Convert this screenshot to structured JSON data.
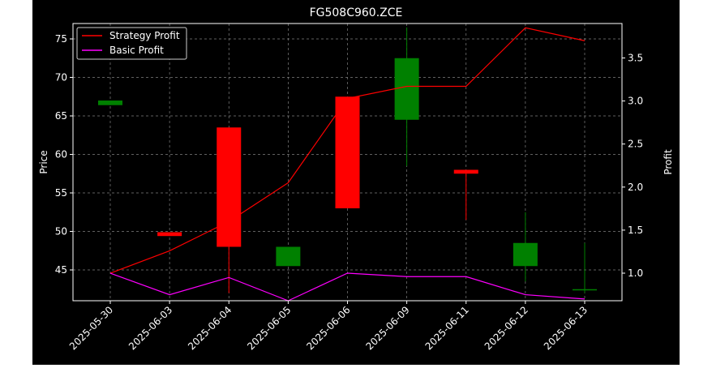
{
  "chart_data": {
    "type": "candlestick",
    "title": "FG508C960.ZCE",
    "ylabel_left": "Price",
    "ylabel_right": "Profit",
    "xlabel": "",
    "ylim_left": [
      41,
      77
    ],
    "ylim_right": [
      0.68,
      3.9
    ],
    "left_ticks": [
      45,
      50,
      55,
      60,
      65,
      70,
      75
    ],
    "right_ticks": [
      "1.0",
      "1.5",
      "2.0",
      "2.5",
      "3.0",
      "3.5"
    ],
    "grid": true,
    "legend_position": "top-left",
    "categories": [
      "2025-05-30",
      "2025-06-03",
      "2025-06-04",
      "2025-06-05",
      "2025-06-06",
      "2025-06-09",
      "2025-06-11",
      "2025-06-12",
      "2025-06-13"
    ],
    "candles": [
      {
        "open": 66.4,
        "close": 67.0,
        "high": 67.0,
        "low": 66.4
      },
      {
        "open": 49.9,
        "close": 49.4,
        "high": 49.9,
        "low": 49.4
      },
      {
        "open": 63.5,
        "close": 48.0,
        "high": 63.5,
        "low": 42.0
      },
      {
        "open": 45.5,
        "close": 48.0,
        "high": 48.0,
        "low": 45.5
      },
      {
        "open": 67.5,
        "close": 53.0,
        "high": 67.5,
        "low": 53.0
      },
      {
        "open": 64.5,
        "close": 72.5,
        "high": 76.5,
        "low": 58.5
      },
      {
        "open": 58.0,
        "close": 57.5,
        "high": 58.0,
        "low": 51.5
      },
      {
        "open": 45.5,
        "close": 48.5,
        "high": 52.5,
        "low": 43.5
      },
      {
        "open": 42.5,
        "close": 42.5,
        "high": 48.5,
        "low": 42.0
      }
    ],
    "series": [
      {
        "name": "Strategy Profit",
        "color": "#ff0000",
        "values": [
          1.0,
          1.26,
          1.6,
          2.05,
          3.03,
          3.17,
          3.17,
          3.85,
          3.7
        ]
      },
      {
        "name": "Basic Profit",
        "color": "#ff00ff",
        "values": [
          1.0,
          0.75,
          0.95,
          0.68,
          1.0,
          0.96,
          0.96,
          0.75,
          0.7
        ]
      }
    ],
    "colors": {
      "up": "#008000",
      "down": "#ff0000",
      "background": "#000000",
      "axes_bg": "#000000",
      "text": "#ffffff",
      "grid": "#808080"
    }
  }
}
